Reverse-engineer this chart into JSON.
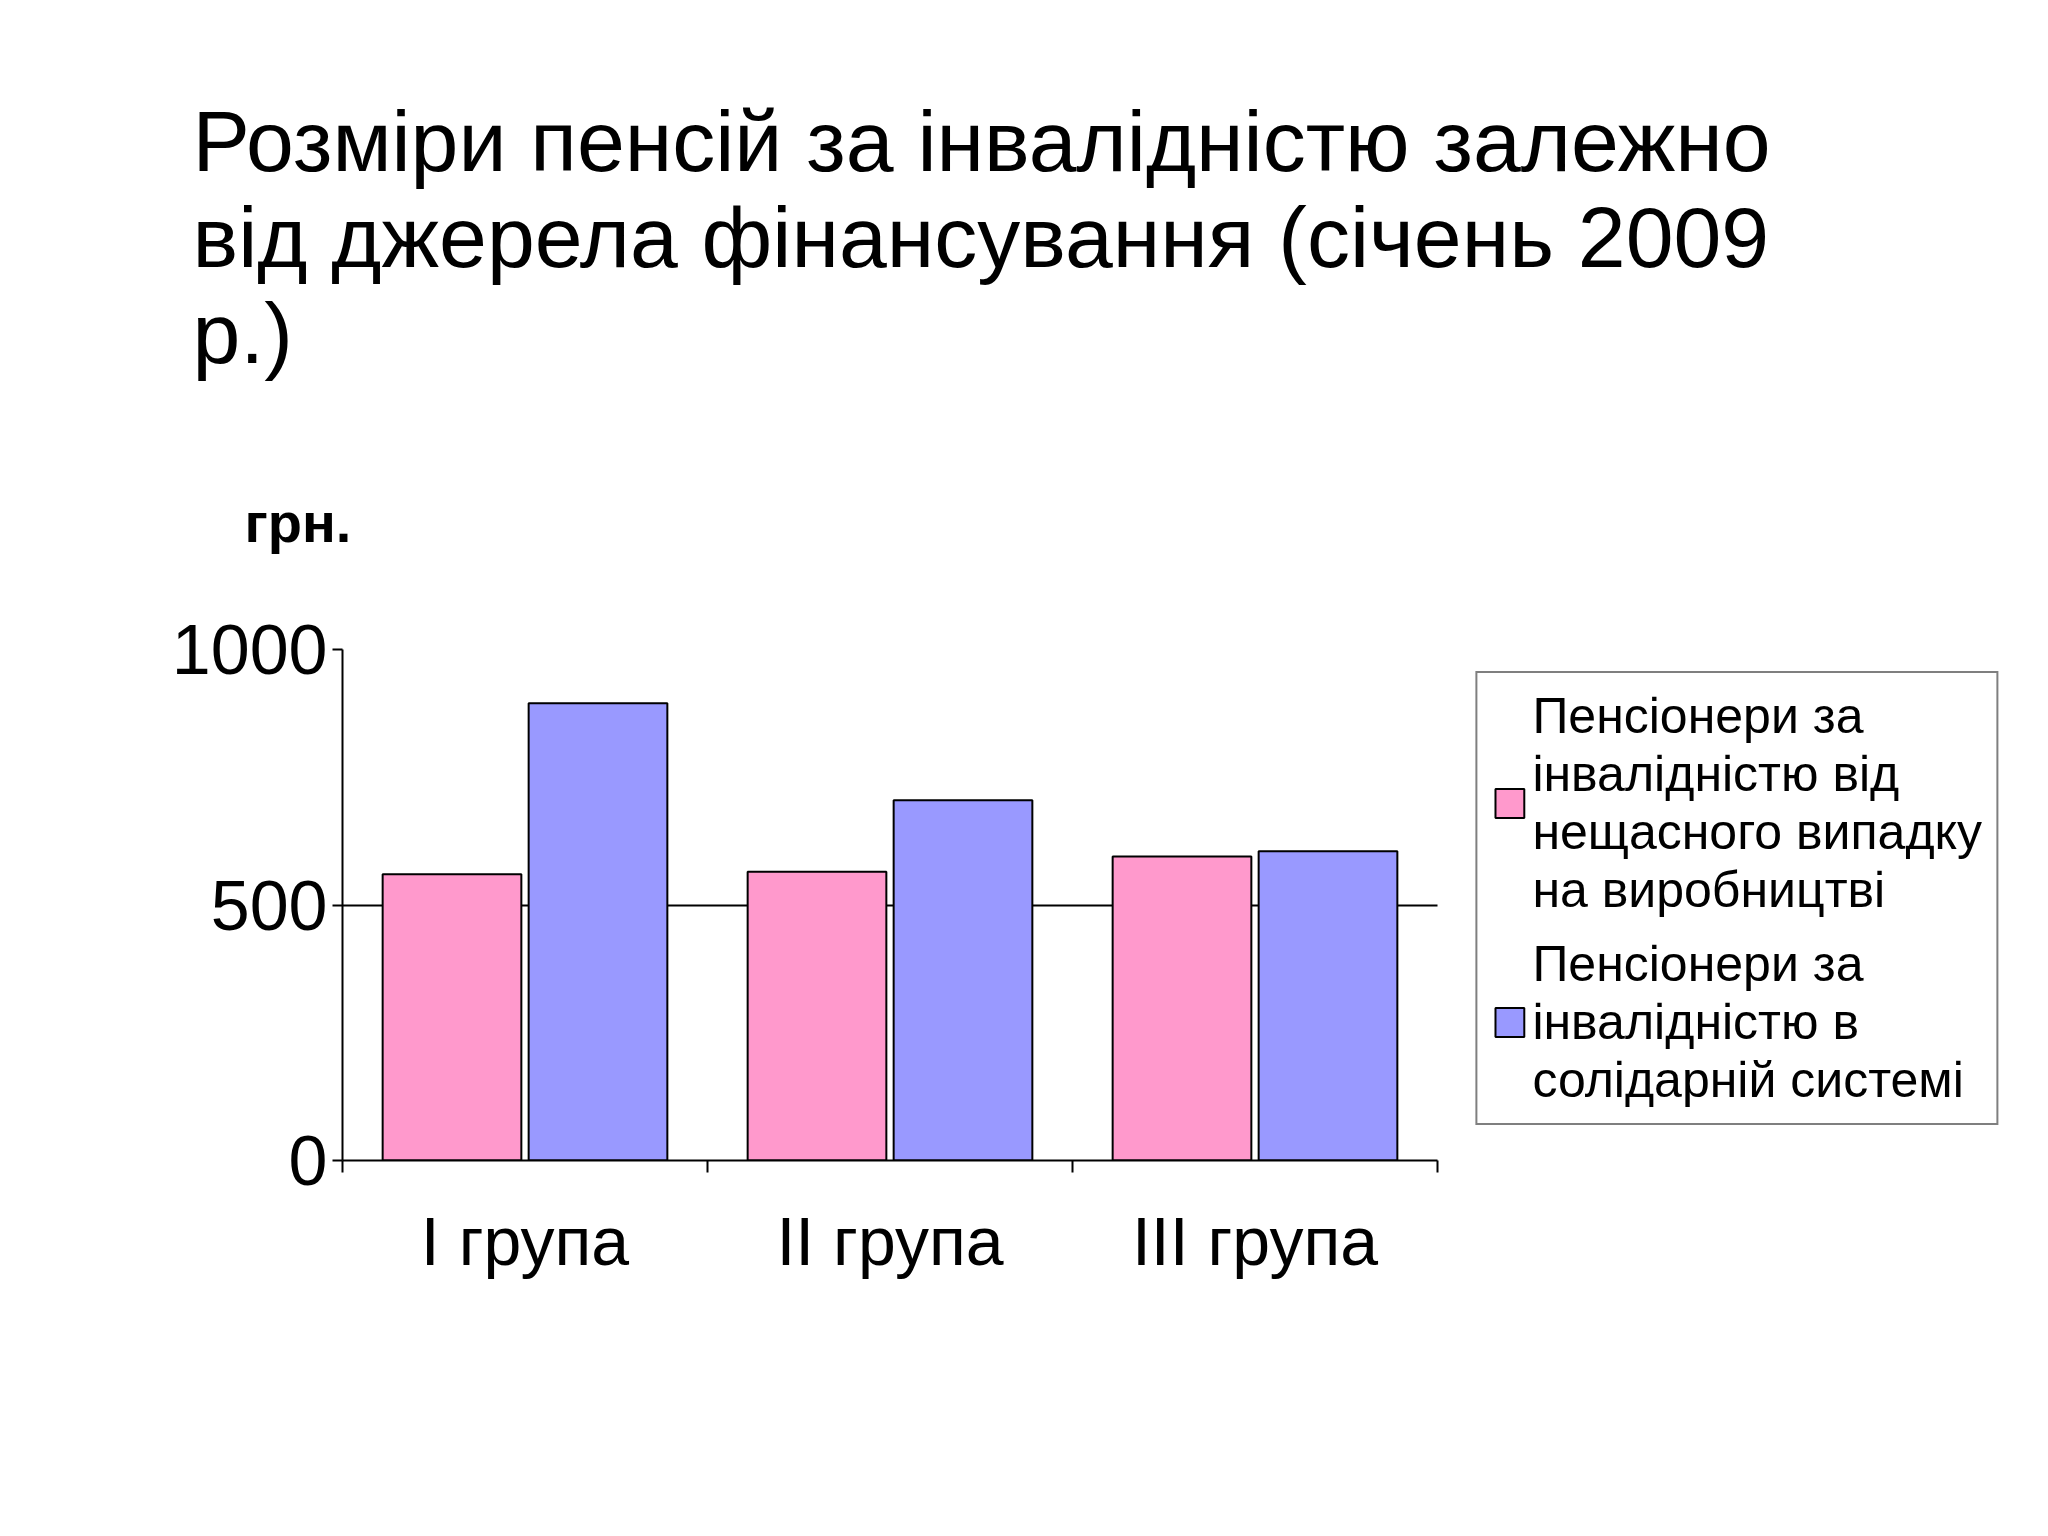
{
  "chart_data": {
    "type": "bar",
    "title": "Розміри пенсій за інвалідністю залежно від джерела фінансування (січень 2009 р.)",
    "ylabel": "грн.",
    "categories": [
      "I група",
      "II група",
      "III група"
    ],
    "series": [
      {
        "name": "Пенсіонери за інвалідністю від нещасного випадку на виробництві",
        "color": "#ff99cc",
        "values": [
          560,
          565,
          595
        ]
      },
      {
        "name": "Пенсіонери за інвалідністю в солідарній системі",
        "color": "#9999ff",
        "values": [
          895,
          705,
          605
        ]
      }
    ],
    "ylim": [
      0,
      1000
    ],
    "yticks": [
      0,
      500,
      1000
    ],
    "grid": "y",
    "legend": "right"
  }
}
